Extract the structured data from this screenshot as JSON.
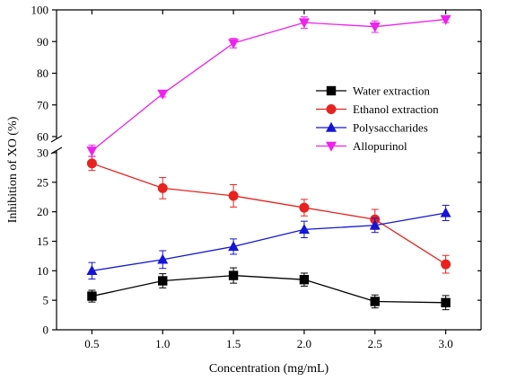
{
  "chart_data": {
    "type": "line",
    "xlabel": "Concentration (mg/mL)",
    "ylabel": "Inhibition of XO (%)",
    "x": [
      0.5,
      1.0,
      1.5,
      2.0,
      2.5,
      3.0
    ],
    "x_tick_labels": [
      "0.5",
      "1.0",
      "1.5",
      "2.0",
      "2.5",
      "3.0"
    ],
    "xlim": [
      0.25,
      3.25
    ],
    "y_axis_break": true,
    "y_lower_range": [
      0,
      30
    ],
    "y_upper_range": [
      60,
      100
    ],
    "y_lower_tick_labels": [
      "0",
      "5",
      "10",
      "15",
      "20",
      "25",
      "30"
    ],
    "y_upper_tick_labels": [
      "60",
      "70",
      "80",
      "90",
      "100"
    ],
    "legend_position": "right-middle",
    "series": [
      {
        "name": "Water extraction",
        "marker": "square",
        "color": "#000000",
        "values": [
          5.7,
          8.3,
          9.2,
          8.5,
          4.8,
          4.6
        ],
        "errors": [
          1.0,
          1.2,
          1.3,
          1.1,
          1.1,
          1.2
        ]
      },
      {
        "name": "Ethanol extraction",
        "marker": "circle",
        "color": "#e8231f",
        "values": [
          28.2,
          24.0,
          22.7,
          20.7,
          18.7,
          11.1
        ],
        "errors": [
          1.2,
          1.8,
          1.9,
          1.4,
          1.7,
          1.5
        ]
      },
      {
        "name": "Polysaccharides",
        "marker": "triangle-up",
        "color": "#1515d8",
        "values": [
          10.0,
          11.9,
          14.1,
          17.0,
          17.7,
          19.8
        ],
        "errors": [
          1.4,
          1.5,
          1.3,
          1.4,
          1.2,
          1.3
        ]
      },
      {
        "name": "Allopurinol",
        "marker": "triangle-down",
        "color": "#ee22ee",
        "values": [
          55.5,
          73.5,
          89.5,
          96.0,
          94.7,
          97.0
        ],
        "errors": [
          1.8,
          1.0,
          1.5,
          1.8,
          1.8,
          1.0
        ]
      }
    ]
  }
}
